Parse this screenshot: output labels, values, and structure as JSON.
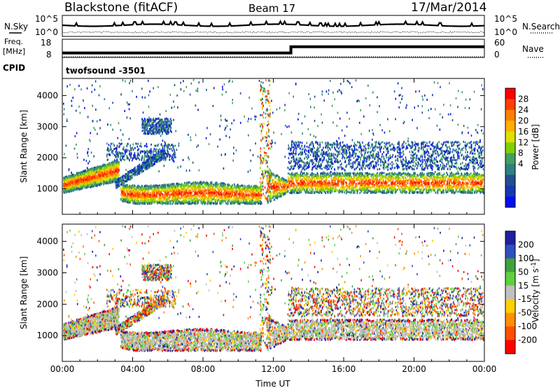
{
  "header": {
    "station": "Blackstone (fitACF)",
    "beam": "Beam 17",
    "date": "17/Mar/2014"
  },
  "noise_panel": {
    "left_label": "N.Sky",
    "right_label": "N.Search",
    "left_ticks": [
      "10^5",
      "10^0"
    ],
    "right_ticks": [
      "10^5",
      "10^0"
    ]
  },
  "freq_panel": {
    "left_label": "Freq.",
    "left_unit": "[MHz]",
    "right_label": "Nave",
    "left_ticks": [
      "18",
      "8"
    ],
    "right_ticks": [
      "60",
      "0"
    ],
    "freq_mhz": [
      {
        "from_hour": 0,
        "to_hour": 13,
        "value": 10.2
      },
      {
        "from_hour": 13,
        "to_hour": 24,
        "value": 14.6
      }
    ]
  },
  "cpid": {
    "label": "CPID",
    "value": "twofsound -3501"
  },
  "chart_data": [
    {
      "type": "heatmap",
      "panel": "power",
      "ylabel": "Slant Range [km]",
      "xlabel": "Time UT",
      "xlim_hours": [
        0,
        24
      ],
      "ylim_km": [
        180,
        4550
      ],
      "y_ticks": [
        1000,
        2000,
        3000,
        4000
      ],
      "x_ticks": [
        "00:00",
        "04:00",
        "08:00",
        "12:00",
        "16:00",
        "20:00",
        "00:00"
      ],
      "colorbar": {
        "label": "Power [dB]",
        "ticks": [
          "28",
          "24",
          "20",
          "16",
          "12",
          "8",
          "4"
        ],
        "colors": [
          "#ff0000",
          "#ff4000",
          "#ff8000",
          "#ffb000",
          "#e0e000",
          "#80d000",
          "#40a060",
          "#308080",
          "#205090",
          "#1838b0",
          "#0010f0"
        ]
      },
      "echo_regions": [
        {
          "name": "main band (early)",
          "from_hour": 0,
          "to_hour": 3,
          "range_km": [
            900,
            1700
          ],
          "level": "high"
        },
        {
          "name": "near-range band",
          "from_hour": 3.3,
          "to_hour": 11.3,
          "range_km": [
            550,
            1300
          ],
          "level": "high"
        },
        {
          "name": "main band (late)",
          "from_hour": 12.8,
          "to_hour": 24,
          "range_km": [
            900,
            1500
          ],
          "level": "high"
        },
        {
          "name": "upper scatter",
          "from_hour": 13,
          "to_hour": 24,
          "range_km": [
            1700,
            2500
          ],
          "level": "low"
        },
        {
          "name": "patch 3000 km",
          "from_hour": 4.5,
          "to_hour": 6,
          "range_km": [
            2800,
            3200
          ],
          "level": "mid"
        }
      ]
    },
    {
      "type": "heatmap",
      "panel": "velocity",
      "ylabel": "Slant Range [km]",
      "xlabel": "Time UT",
      "xlim_hours": [
        0,
        24
      ],
      "ylim_km": [
        180,
        4550
      ],
      "y_ticks": [
        1000,
        2000,
        3000,
        4000
      ],
      "x_ticks": [
        "00:00",
        "04:00",
        "08:00",
        "12:00",
        "16:00",
        "20:00",
        "00:00"
      ],
      "colorbar": {
        "label": "Velocity [m s^-1]",
        "ticks": [
          "200",
          "100",
          "50",
          "15",
          "-15",
          "-50",
          "-100",
          "-200"
        ],
        "colors": [
          "#2020a0",
          "#3050c0",
          "#40a040",
          "#60d040",
          "#c0c0c0",
          "#ffd000",
          "#ff9000",
          "#ff5000",
          "#ff0000"
        ]
      }
    }
  ],
  "colors": {
    "axis": "#000000",
    "ground_scatter": "#c0c0c0"
  }
}
